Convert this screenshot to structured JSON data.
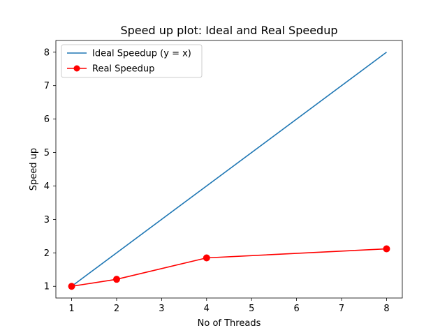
{
  "chart_data": {
    "type": "line",
    "title": "Speed up plot: Ideal and Real Speedup",
    "xlabel": "No of Threads",
    "ylabel": "Speed up",
    "xlim": [
      0.65,
      8.35
    ],
    "ylim": [
      0.65,
      8.35
    ],
    "xticks": [
      1,
      2,
      3,
      4,
      5,
      6,
      7,
      8
    ],
    "yticks": [
      1,
      2,
      3,
      4,
      5,
      6,
      7,
      8
    ],
    "grid": false,
    "legend_position": "upper-left",
    "series": [
      {
        "name": "Ideal Speedup (y = x)",
        "color": "#1f77b4",
        "marker": "none",
        "x": [
          1,
          8
        ],
        "y": [
          1,
          8
        ]
      },
      {
        "name": "Real Speedup",
        "color": "#ff0000",
        "marker": "circle",
        "x": [
          1,
          2,
          4,
          8
        ],
        "y": [
          1.0,
          1.21,
          1.85,
          2.12
        ]
      }
    ]
  }
}
